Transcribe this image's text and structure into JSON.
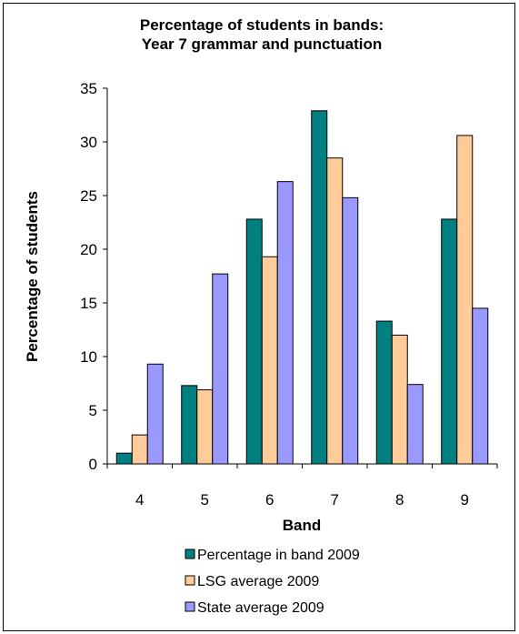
{
  "chart_data": {
    "type": "bar",
    "title": [
      "Percentage of students in bands:",
      "Year 7 grammar and punctuation"
    ],
    "xlabel": "Band",
    "ylabel": "Percentage of students",
    "categories": [
      "4",
      "5",
      "6",
      "7",
      "8",
      "9"
    ],
    "ylim": [
      0,
      35
    ],
    "yticks": [
      0,
      5,
      10,
      15,
      20,
      25,
      30,
      35
    ],
    "grid": false,
    "legend_position": "bottom",
    "series": [
      {
        "name": "Percentage in band 2009",
        "color": "#008080",
        "values": [
          1.0,
          7.3,
          22.8,
          32.9,
          13.3,
          22.8
        ]
      },
      {
        "name": "LSG average 2009",
        "color": "#FFCC99",
        "values": [
          2.7,
          6.9,
          19.3,
          28.5,
          12.0,
          30.6
        ]
      },
      {
        "name": "State average 2009",
        "color": "#9999FF",
        "values": [
          9.3,
          17.7,
          26.3,
          24.8,
          7.4,
          14.5
        ]
      }
    ]
  }
}
